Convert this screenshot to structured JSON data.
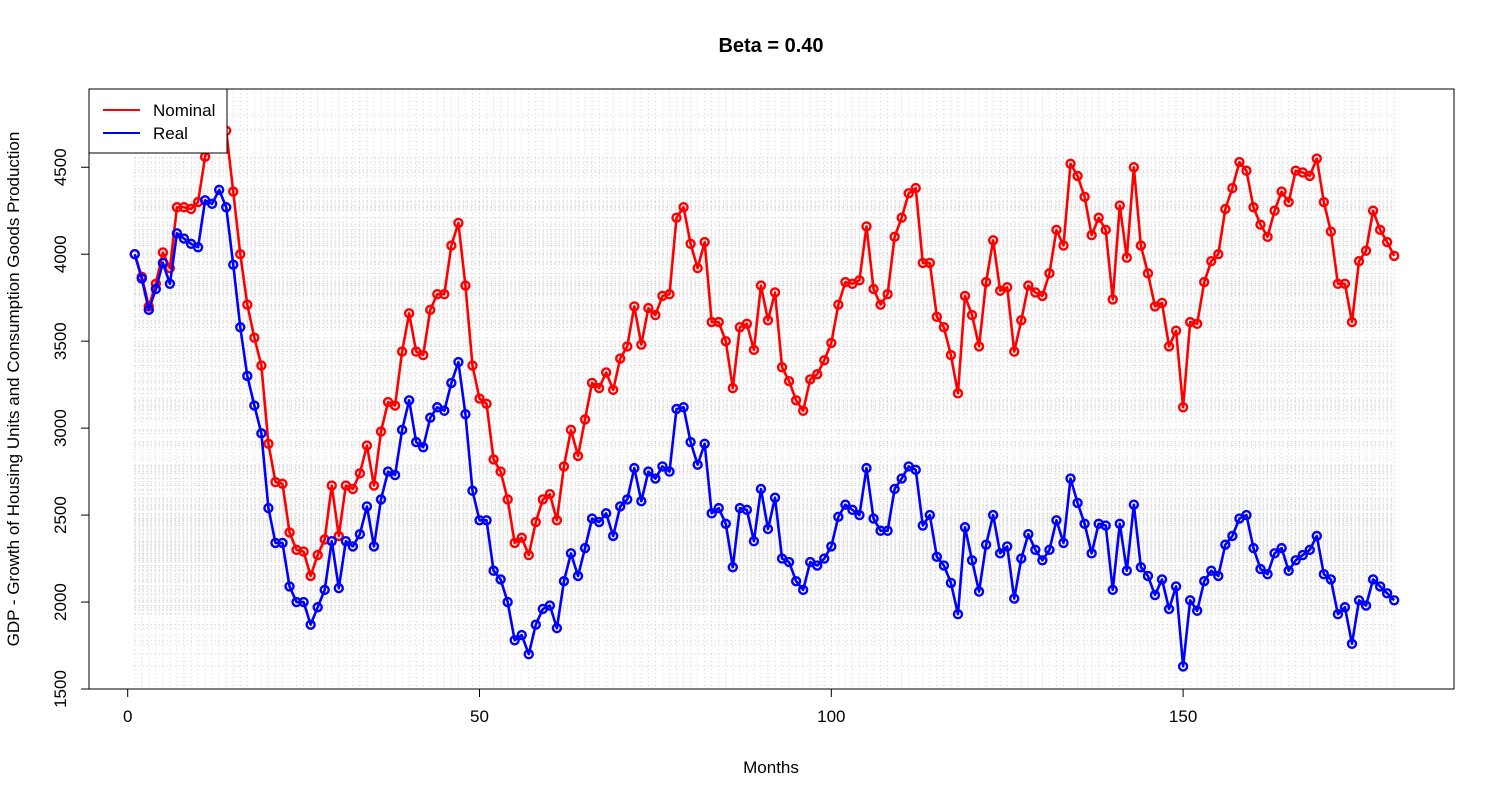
{
  "chart_data": {
    "type": "line",
    "title": "Beta = 0.40",
    "xlabel": "Months",
    "ylabel": "GDP - Growth of Housing Units and Consumption Goods Production",
    "xlim": [
      -5.5,
      188.5
    ],
    "ylim": [
      1500,
      4950
    ],
    "x_ticks": [
      0,
      50,
      100,
      150
    ],
    "y_ticks": [
      1500,
      2000,
      2500,
      3000,
      3500,
      4000,
      4500
    ],
    "grid": true,
    "legend_position": "top-left",
    "markers": "open-circle",
    "x": [
      1,
      2,
      3,
      4,
      5,
      6,
      7,
      8,
      9,
      10,
      11,
      12,
      13,
      14,
      15,
      16,
      17,
      18,
      19,
      20,
      21,
      22,
      23,
      24,
      25,
      26,
      27,
      28,
      29,
      30,
      31,
      32,
      33,
      34,
      35,
      36,
      37,
      38,
      39,
      40,
      41,
      42,
      43,
      44,
      45,
      46,
      47,
      48,
      49,
      50,
      51,
      52,
      53,
      54,
      55,
      56,
      57,
      58,
      59,
      60,
      61,
      62,
      63,
      64,
      65,
      66,
      67,
      68,
      69,
      70,
      71,
      72,
      73,
      74,
      75,
      76,
      77,
      78,
      79,
      80,
      81,
      82,
      83,
      84,
      85,
      86,
      87,
      88,
      89,
      90,
      91,
      92,
      93,
      94,
      95,
      96,
      97,
      98,
      99,
      100,
      101,
      102,
      103,
      104,
      105,
      106,
      107,
      108,
      109,
      110,
      111,
      112,
      113,
      114,
      115,
      116,
      117,
      118,
      119,
      120,
      121,
      122,
      123,
      124,
      125,
      126,
      127,
      128,
      129,
      130,
      131,
      132,
      133,
      134,
      135,
      136,
      137,
      138,
      139,
      140,
      141,
      142,
      143,
      144,
      145,
      146,
      147,
      148,
      149,
      150,
      151,
      152,
      153,
      154,
      155,
      156,
      157,
      158,
      159,
      160,
      161,
      162,
      163,
      164,
      165,
      166,
      167,
      168,
      169,
      170,
      171,
      172,
      173,
      174,
      175,
      176,
      177,
      178,
      179,
      180
    ],
    "series": [
      {
        "name": "Nominal",
        "color": "#ff0000",
        "values": [
          4000,
          3870,
          3700,
          3830,
          4010,
          3920,
          4270,
          4270,
          4260,
          4300,
          4560,
          4720,
          4800,
          4710,
          4360,
          4000,
          3710,
          3520,
          3360,
          2910,
          2690,
          2680,
          2400,
          2300,
          2290,
          2150,
          2270,
          2360,
          2670,
          2380,
          2670,
          2650,
          2740,
          2900,
          2670,
          2980,
          3150,
          3130,
          3440,
          3660,
          3440,
          3420,
          3680,
          3770,
          3770,
          4050,
          4180,
          3820,
          3360,
          3170,
          3140,
          2820,
          2750,
          2590,
          2340,
          2370,
          2270,
          2460,
          2590,
          2620,
          2470,
          2780,
          2990,
          2840,
          3050,
          3260,
          3230,
          3320,
          3220,
          3400,
          3470,
          3700,
          3480,
          3690,
          3650,
          3760,
          3770,
          4210,
          4270,
          4060,
          3920,
          4070,
          3610,
          3610,
          3500,
          3230,
          3580,
          3600,
          3450,
          3820,
          3620,
          3780,
          3350,
          3270,
          3160,
          3100,
          3280,
          3310,
          3390,
          3490,
          3710,
          3840,
          3830,
          3850,
          4160,
          3800,
          3710,
          3770,
          4100,
          4210,
          4350,
          4380,
          3950,
          3950,
          3640,
          3580,
          3420,
          3200,
          3760,
          3650,
          3470,
          3840,
          4080,
          3790,
          3810,
          3440,
          3620,
          3820,
          3780,
          3760,
          3890,
          4140,
          4050,
          4520,
          4450,
          4330,
          4110,
          4210,
          4140,
          3740,
          4280,
          3980,
          4500,
          4050,
          3890,
          3700,
          3720,
          3470,
          3560,
          3120,
          3610,
          3600,
          3840,
          3960,
          4000,
          4260,
          4380,
          4530,
          4480,
          4270,
          4170,
          4100,
          4250,
          4360,
          4300,
          4480,
          4470,
          4450,
          4550,
          4300,
          4130,
          3830,
          3830,
          3610,
          3960,
          4020,
          4250,
          4140,
          4070,
          3990
        ]
      },
      {
        "name": "Real",
        "color": "#0000ff",
        "values": [
          4000,
          3860,
          3680,
          3800,
          3950,
          3830,
          4120,
          4090,
          4060,
          4040,
          4310,
          4290,
          4370,
          4270,
          3940,
          3580,
          3300,
          3130,
          2970,
          2540,
          2340,
          2340,
          2090,
          2000,
          2000,
          1870,
          1970,
          2070,
          2350,
          2080,
          2350,
          2320,
          2390,
          2550,
          2320,
          2590,
          2750,
          2730,
          2990,
          3160,
          2920,
          2890,
          3060,
          3120,
          3100,
          3260,
          3380,
          3080,
          2640,
          2470,
          2470,
          2180,
          2130,
          2000,
          1780,
          1810,
          1700,
          1870,
          1960,
          1980,
          1850,
          2120,
          2280,
          2150,
          2310,
          2480,
          2460,
          2510,
          2380,
          2550,
          2590,
          2770,
          2580,
          2750,
          2710,
          2780,
          2750,
          3110,
          3120,
          2920,
          2790,
          2910,
          2510,
          2540,
          2450,
          2200,
          2540,
          2530,
          2350,
          2650,
          2420,
          2600,
          2250,
          2230,
          2120,
          2070,
          2230,
          2210,
          2250,
          2320,
          2490,
          2560,
          2530,
          2500,
          2770,
          2480,
          2410,
          2410,
          2650,
          2710,
          2780,
          2760,
          2440,
          2500,
          2260,
          2210,
          2110,
          1930,
          2430,
          2240,
          2060,
          2330,
          2500,
          2280,
          2320,
          2020,
          2250,
          2390,
          2300,
          2240,
          2300,
          2470,
          2340,
          2710,
          2570,
          2450,
          2280,
          2450,
          2440,
          2070,
          2450,
          2180,
          2560,
          2200,
          2150,
          2040,
          2130,
          1960,
          2090,
          1630,
          2010,
          1950,
          2120,
          2180,
          2150,
          2330,
          2380,
          2480,
          2500,
          2310,
          2190,
          2160,
          2280,
          2310,
          2180,
          2240,
          2270,
          2300,
          2380,
          2160,
          2130,
          1930,
          1970,
          1760,
          2010,
          1980,
          2130,
          2090,
          2050,
          2010
        ]
      }
    ]
  }
}
